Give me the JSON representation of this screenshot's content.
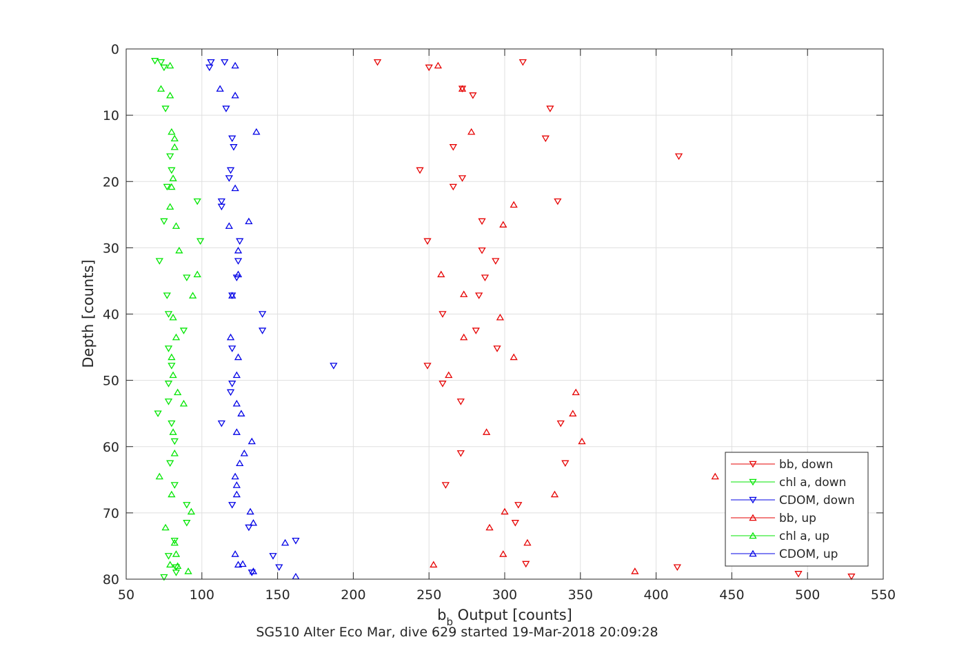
{
  "chart_data": {
    "type": "scatter",
    "xlabel_main": "b",
    "xlabel_sub": "b",
    "xlabel_rest": " Output [counts]",
    "ylabel": "Depth [counts]",
    "caption": "SG510 Alter Eco Mar, dive 629 started 19-Mar-2018 20:09:28",
    "xlim": [
      50,
      550
    ],
    "ylim": [
      0,
      80
    ],
    "y_reversed": true,
    "grid": true,
    "legend_position": "bottom-right",
    "x_ticks": [
      50,
      100,
      150,
      200,
      250,
      300,
      350,
      400,
      450,
      500,
      550
    ],
    "y_ticks": [
      0,
      10,
      20,
      30,
      40,
      50,
      60,
      70,
      80
    ],
    "series": [
      {
        "name": "bb, down",
        "marker": "triangle-down",
        "color": "#e60000",
        "points": [
          [
            216,
            2
          ],
          [
            312,
            2
          ],
          [
            250,
            2.8
          ],
          [
            272,
            6
          ],
          [
            279,
            7
          ],
          [
            330,
            9
          ],
          [
            327,
            13.5
          ],
          [
            415,
            16.2
          ],
          [
            266,
            14.8
          ],
          [
            244,
            18.3
          ],
          [
            272,
            19.5
          ],
          [
            266,
            20.8
          ],
          [
            335,
            23
          ],
          [
            285,
            26
          ],
          [
            249,
            29
          ],
          [
            285,
            30.4
          ],
          [
            294,
            32
          ],
          [
            287,
            34.5
          ],
          [
            283,
            37.2
          ],
          [
            259,
            40
          ],
          [
            281,
            42.5
          ],
          [
            295,
            45.2
          ],
          [
            249,
            47.8
          ],
          [
            259,
            50.5
          ],
          [
            271,
            53.2
          ],
          [
            337,
            56.5
          ],
          [
            271,
            61
          ],
          [
            340,
            62.5
          ],
          [
            261,
            65.8
          ],
          [
            309,
            68.8
          ],
          [
            307,
            71.5
          ],
          [
            314,
            77.7
          ],
          [
            414,
            78.2
          ],
          [
            494,
            79.2
          ],
          [
            529,
            79.6
          ]
        ]
      },
      {
        "name": "chl a, down",
        "marker": "triangle-down",
        "color": "#00e600",
        "points": [
          [
            69,
            1.8
          ],
          [
            73,
            2
          ],
          [
            75,
            2.8
          ],
          [
            76,
            9
          ],
          [
            79,
            16.2
          ],
          [
            80,
            18.3
          ],
          [
            77,
            20.8
          ],
          [
            97,
            23
          ],
          [
            75,
            26
          ],
          [
            99,
            29
          ],
          [
            72,
            32
          ],
          [
            90,
            34.5
          ],
          [
            77,
            37.2
          ],
          [
            78,
            40
          ],
          [
            88,
            42.5
          ],
          [
            78,
            45.2
          ],
          [
            80,
            47.8
          ],
          [
            78,
            50.5
          ],
          [
            78,
            53.2
          ],
          [
            71,
            55
          ],
          [
            80,
            56.5
          ],
          [
            82,
            59.2
          ],
          [
            79,
            62.5
          ],
          [
            82,
            65.8
          ],
          [
            90,
            68.8
          ],
          [
            90,
            71.5
          ],
          [
            82,
            74.2
          ],
          [
            78,
            76.5
          ],
          [
            83,
            78.2
          ],
          [
            83,
            79
          ],
          [
            75,
            79.7
          ]
        ]
      },
      {
        "name": "CDOM, down",
        "marker": "triangle-down",
        "color": "#0000e6",
        "points": [
          [
            106,
            2
          ],
          [
            105,
            2.8
          ],
          [
            115,
            2
          ],
          [
            116,
            9
          ],
          [
            120,
            13.5
          ],
          [
            121,
            14.8
          ],
          [
            119,
            18.3
          ],
          [
            118,
            19.5
          ],
          [
            113,
            23
          ],
          [
            113,
            23.8
          ],
          [
            125,
            29
          ],
          [
            124,
            32
          ],
          [
            123,
            34.5
          ],
          [
            120,
            37.2
          ],
          [
            140,
            40
          ],
          [
            140,
            42.5
          ],
          [
            120,
            45.2
          ],
          [
            187,
            47.8
          ],
          [
            120,
            50.5
          ],
          [
            119,
            51.8
          ],
          [
            113,
            56.5
          ],
          [
            120,
            68.8
          ],
          [
            131,
            72.2
          ],
          [
            162,
            74.2
          ],
          [
            147,
            76.5
          ],
          [
            151,
            78.2
          ],
          [
            133,
            79
          ]
        ]
      },
      {
        "name": "bb, up",
        "marker": "triangle-up",
        "color": "#e60000",
        "points": [
          [
            256,
            2.5
          ],
          [
            272,
            6
          ],
          [
            278,
            12.5
          ],
          [
            306,
            23.5
          ],
          [
            299,
            26.5
          ],
          [
            258,
            34
          ],
          [
            273,
            37
          ],
          [
            297,
            40.5
          ],
          [
            273,
            43.5
          ],
          [
            306,
            46.5
          ],
          [
            263,
            49.2
          ],
          [
            347,
            51.8
          ],
          [
            345,
            55
          ],
          [
            288,
            57.8
          ],
          [
            351,
            59.2
          ],
          [
            439,
            64.5
          ],
          [
            333,
            67.2
          ],
          [
            300,
            69.8
          ],
          [
            290,
            72.2
          ],
          [
            315,
            74.5
          ],
          [
            299,
            76.2
          ],
          [
            253,
            77.8
          ],
          [
            386,
            78.8
          ]
        ]
      },
      {
        "name": "chl a, up",
        "marker": "triangle-up",
        "color": "#00e600",
        "points": [
          [
            79,
            2.5
          ],
          [
            73,
            6
          ],
          [
            79,
            7
          ],
          [
            80,
            12.5
          ],
          [
            82,
            13.5
          ],
          [
            82,
            14.8
          ],
          [
            81,
            19.5
          ],
          [
            80,
            20.8
          ],
          [
            79,
            23.8
          ],
          [
            83,
            26.7
          ],
          [
            85,
            30.4
          ],
          [
            97,
            34
          ],
          [
            94,
            37.2
          ],
          [
            81,
            40.5
          ],
          [
            83,
            43.5
          ],
          [
            80,
            46.5
          ],
          [
            81,
            49.2
          ],
          [
            84,
            51.8
          ],
          [
            88,
            53.5
          ],
          [
            81,
            57.8
          ],
          [
            82,
            61
          ],
          [
            72,
            64.5
          ],
          [
            80,
            67.2
          ],
          [
            93,
            69.8
          ],
          [
            76,
            72.2
          ],
          [
            82,
            74.5
          ],
          [
            83,
            76.2
          ],
          [
            79,
            77.8
          ],
          [
            84,
            78
          ],
          [
            91,
            78.8
          ]
        ]
      },
      {
        "name": "CDOM, up",
        "marker": "triangle-up",
        "color": "#0000e6",
        "points": [
          [
            122,
            2.5
          ],
          [
            112,
            6
          ],
          [
            122,
            7
          ],
          [
            136,
            12.5
          ],
          [
            122,
            21
          ],
          [
            131,
            26
          ],
          [
            118,
            26.7
          ],
          [
            124,
            30.4
          ],
          [
            124,
            34
          ],
          [
            120,
            37.2
          ],
          [
            119,
            43.5
          ],
          [
            124,
            46.5
          ],
          [
            123,
            49.2
          ],
          [
            123,
            53.5
          ],
          [
            126,
            55
          ],
          [
            123,
            57.8
          ],
          [
            133,
            59.2
          ],
          [
            128,
            61
          ],
          [
            125,
            62.5
          ],
          [
            122,
            64.5
          ],
          [
            123,
            65.8
          ],
          [
            123,
            67.2
          ],
          [
            132,
            69.8
          ],
          [
            134,
            71.5
          ],
          [
            155,
            74.5
          ],
          [
            122,
            76.2
          ],
          [
            127,
            77.7
          ],
          [
            124,
            77.8
          ],
          [
            134,
            78.8
          ],
          [
            162,
            79.6
          ]
        ]
      }
    ]
  }
}
